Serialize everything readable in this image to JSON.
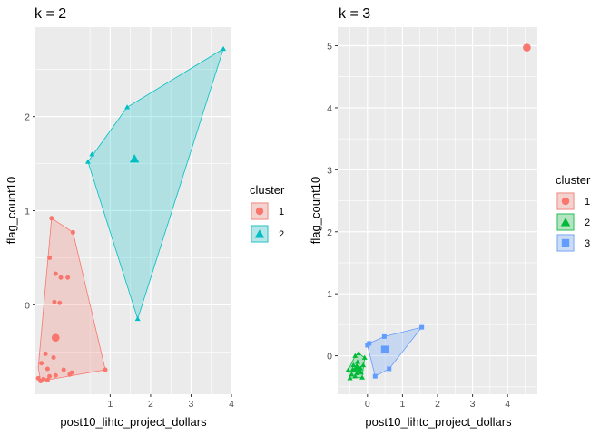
{
  "chart_data": [
    {
      "type": "scatter",
      "title": "k = 2",
      "xlabel": "post10_lihtc_project_dollars",
      "ylabel": "flag_count10",
      "xlim": [
        -0.85,
        4.0
      ],
      "ylim": [
        -0.95,
        2.95
      ],
      "xticks": [
        1,
        2,
        3,
        4
      ],
      "yticks": [
        0,
        1,
        2
      ],
      "legend_title": "cluster",
      "clusters": [
        {
          "name": "1",
          "color": "#F8766D",
          "shape": "circle",
          "centroid": [
            -0.35,
            -0.35
          ],
          "hull": [
            [
              -0.45,
              0.92
            ],
            [
              0.08,
              0.77
            ],
            [
              0.88,
              -0.69
            ],
            [
              -0.72,
              -0.81
            ],
            [
              -0.78,
              -0.67
            ]
          ],
          "points": [
            [
              -0.45,
              0.92
            ],
            [
              0.08,
              0.77
            ],
            [
              -0.5,
              0.5
            ],
            [
              -0.35,
              0.33
            ],
            [
              -0.22,
              0.29
            ],
            [
              -0.05,
              0.29
            ],
            [
              -0.38,
              0.03
            ],
            [
              -0.25,
              0.02
            ],
            [
              -0.4,
              -0.56
            ],
            [
              -0.6,
              -0.52
            ],
            [
              -0.7,
              -0.62
            ],
            [
              -0.55,
              -0.68
            ],
            [
              -0.15,
              -0.69
            ],
            [
              -0.35,
              -0.75
            ],
            [
              -0.5,
              -0.76
            ],
            [
              0.0,
              -0.74
            ],
            [
              0.05,
              -0.72
            ],
            [
              -0.55,
              -0.8
            ],
            [
              -0.72,
              -0.81
            ],
            [
              -0.65,
              -0.79
            ],
            [
              -0.78,
              -0.78
            ],
            [
              0.88,
              -0.69
            ]
          ]
        },
        {
          "name": "2",
          "color": "#00BFC4",
          "shape": "triangle",
          "centroid": [
            1.6,
            1.55
          ],
          "hull": [
            [
              3.8,
              2.72
            ],
            [
              1.42,
              2.1
            ],
            [
              0.45,
              1.52
            ],
            [
              1.68,
              -0.15
            ]
          ],
          "points": [
            [
              3.8,
              2.72
            ],
            [
              1.42,
              2.1
            ],
            [
              0.55,
              1.6
            ],
            [
              0.45,
              1.52
            ],
            [
              1.68,
              -0.15
            ]
          ]
        }
      ]
    },
    {
      "type": "scatter",
      "title": "k = 3",
      "xlabel": "post10_lihtc_project_dollars",
      "ylabel": "flag_count10",
      "xlim": [
        -0.85,
        4.85
      ],
      "ylim": [
        -0.62,
        5.3
      ],
      "xticks": [
        0,
        1,
        2,
        3,
        4
      ],
      "yticks": [
        0,
        1,
        2,
        3,
        4,
        5
      ],
      "legend_title": "cluster",
      "clusters": [
        {
          "name": "1",
          "color": "#F8766D",
          "shape": "circle",
          "centroid": [
            4.55,
            4.97
          ],
          "hull": [],
          "points": [
            [
              4.55,
              4.97
            ]
          ]
        },
        {
          "name": "2",
          "color": "#00BA38",
          "shape": "triangle",
          "centroid": [
            -0.3,
            -0.2
          ],
          "hull": [
            [
              -0.25,
              0.04
            ],
            [
              -0.08,
              -0.03
            ],
            [
              -0.15,
              -0.35
            ],
            [
              -0.5,
              -0.36
            ],
            [
              -0.55,
              -0.23
            ],
            [
              -0.35,
              0.0
            ]
          ],
          "points": [
            [
              -0.25,
              0.04
            ],
            [
              -0.08,
              -0.03
            ],
            [
              -0.35,
              0.0
            ],
            [
              -0.55,
              -0.23
            ],
            [
              -0.5,
              -0.36
            ],
            [
              -0.15,
              -0.35
            ],
            [
              -0.4,
              -0.15
            ],
            [
              -0.3,
              -0.28
            ],
            [
              -0.2,
              -0.2
            ],
            [
              -0.45,
              -0.3
            ],
            [
              -0.35,
              -0.33
            ],
            [
              -0.28,
              -0.1
            ],
            [
              -0.18,
              -0.27
            ],
            [
              -0.42,
              -0.22
            ],
            [
              -0.32,
              -0.18
            ],
            [
              -0.12,
              -0.15
            ]
          ]
        },
        {
          "name": "3",
          "color": "#619CFF",
          "shape": "square",
          "centroid": [
            0.5,
            0.1
          ],
          "hull": [
            [
              0.05,
              0.2
            ],
            [
              0.48,
              0.31
            ],
            [
              1.55,
              0.46
            ],
            [
              0.62,
              -0.21
            ],
            [
              0.22,
              -0.33
            ],
            [
              0.0,
              0.17
            ]
          ],
          "points": [
            [
              0.05,
              0.2
            ],
            [
              0.48,
              0.31
            ],
            [
              1.55,
              0.46
            ],
            [
              0.62,
              -0.21
            ],
            [
              0.22,
              -0.33
            ],
            [
              0.0,
              0.17
            ]
          ]
        }
      ]
    }
  ]
}
